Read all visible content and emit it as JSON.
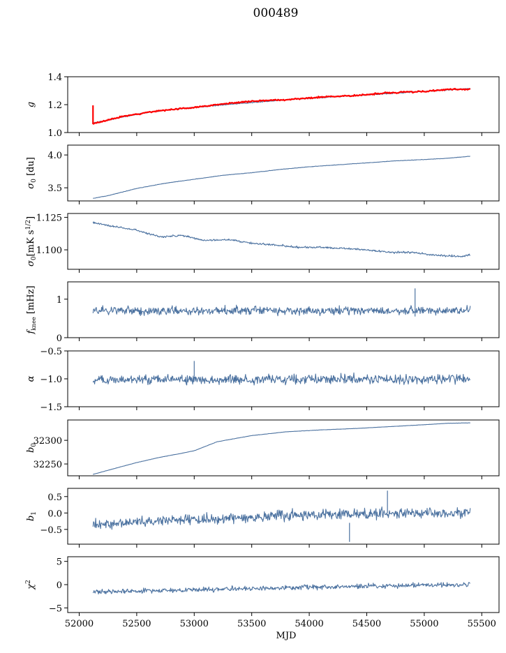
{
  "figure": {
    "title": "000489",
    "x_tick_labels": [
      "52000",
      "52500",
      "53000",
      "53500",
      "54000",
      "54500",
      "55000",
      "55500"
    ],
    "colors": {
      "series": "#4c72a0",
      "fit": "#ff0000",
      "axis": "#000000"
    }
  },
  "chart_data": [
    {
      "type": "line",
      "title": "000489",
      "ylabel": "g",
      "xlabel": "",
      "xlim": [
        51900,
        55650
      ],
      "ylim": [
        1.0,
        1.4
      ],
      "yticks": [
        "1.0",
        "1.2",
        "1.4"
      ],
      "show_x_tick_labels": false,
      "series": [
        {
          "name": "g",
          "style": "line",
          "noise": 0.004,
          "x": [
            52120,
            52200,
            52400,
            52600,
            52800,
            53000,
            53200,
            53500,
            53800,
            54100,
            54400,
            54700,
            55000,
            55200,
            55400
          ],
          "y": [
            1.07,
            1.08,
            1.115,
            1.145,
            1.165,
            1.18,
            1.195,
            1.215,
            1.235,
            1.25,
            1.265,
            1.28,
            1.295,
            1.305,
            1.315
          ]
        },
        {
          "name": "fit",
          "style": "fit",
          "noise": 0.006,
          "x": [
            52120,
            52200,
            52400,
            52600,
            52800,
            53000,
            53200,
            53500,
            53800,
            54100,
            54400,
            54700,
            55000,
            55200,
            55400
          ],
          "y": [
            1.065,
            1.08,
            1.12,
            1.145,
            1.165,
            1.18,
            1.2,
            1.225,
            1.235,
            1.255,
            1.265,
            1.285,
            1.295,
            1.31,
            1.31
          ],
          "spikes": [
            {
              "x": 52120,
              "y0": 1.06,
              "y1": 1.195
            }
          ]
        }
      ]
    },
    {
      "type": "line",
      "ylabel": "σ0 [du]",
      "xlabel": "",
      "xlim": [
        51900,
        55650
      ],
      "ylim": [
        3.3,
        4.15
      ],
      "yticks": [
        "3.5",
        "4.0"
      ],
      "show_x_tick_labels": false,
      "series": [
        {
          "name": "sigma0_du",
          "style": "line",
          "noise": 0.003,
          "x": [
            52120,
            52250,
            52500,
            52750,
            53000,
            53250,
            53500,
            53750,
            54000,
            54250,
            54500,
            54750,
            55000,
            55200,
            55400
          ],
          "y": [
            3.34,
            3.38,
            3.49,
            3.57,
            3.63,
            3.69,
            3.73,
            3.78,
            3.82,
            3.85,
            3.88,
            3.91,
            3.93,
            3.95,
            3.98
          ]
        }
      ]
    },
    {
      "type": "line",
      "ylabel": "σ0[mK s^1/2]",
      "xlabel": "",
      "xlim": [
        51900,
        55650
      ],
      "ylim": [
        1.085,
        1.128
      ],
      "yticks": [
        "1.100",
        "1.125"
      ],
      "show_x_tick_labels": false,
      "series": [
        {
          "name": "sigma0_mK",
          "style": "line",
          "noise": 0.0008,
          "x": [
            52120,
            52300,
            52500,
            52700,
            52900,
            53100,
            53300,
            53500,
            53700,
            53900,
            54100,
            54300,
            54500,
            54700,
            54900,
            55100,
            55300,
            55400
          ],
          "y": [
            1.121,
            1.118,
            1.115,
            1.11,
            1.111,
            1.107,
            1.108,
            1.105,
            1.104,
            1.102,
            1.102,
            1.101,
            1.1,
            1.098,
            1.098,
            1.096,
            1.095,
            1.096
          ]
        }
      ]
    },
    {
      "type": "line",
      "ylabel": "f_knee [mHz]",
      "xlabel": "",
      "xlim": [
        51900,
        55650
      ],
      "ylim": [
        0,
        1.45
      ],
      "yticks": [
        "0",
        "1"
      ],
      "show_x_tick_labels": false,
      "series": [
        {
          "name": "fknee",
          "style": "line",
          "noise": 0.12,
          "x": [
            52120,
            55400
          ],
          "y": [
            0.7,
            0.7
          ],
          "spikes": [
            {
              "x": 54920,
              "y0": 0.55,
              "y1": 1.28
            }
          ]
        }
      ]
    },
    {
      "type": "line",
      "ylabel": "α",
      "xlabel": "",
      "xlim": [
        51900,
        55650
      ],
      "ylim": [
        -1.5,
        -0.5
      ],
      "yticks": [
        "−1.5",
        "−1.0",
        "−0.5"
      ],
      "show_x_tick_labels": false,
      "series": [
        {
          "name": "alpha",
          "style": "line",
          "noise": 0.09,
          "x": [
            52120,
            55400
          ],
          "y": [
            -1.02,
            -1.0
          ],
          "spikes": [
            {
              "x": 53000,
              "y0": -0.95,
              "y1": -0.68
            }
          ]
        }
      ]
    },
    {
      "type": "line",
      "ylabel": "b0",
      "xlabel": "",
      "xlim": [
        51900,
        55650
      ],
      "ylim": [
        32225,
        32343
      ],
      "yticks": [
        "32250",
        "32300"
      ],
      "show_x_tick_labels": false,
      "series": [
        {
          "name": "b0",
          "style": "line",
          "noise": 0.3,
          "x": [
            52120,
            52300,
            52500,
            52700,
            52900,
            53000,
            53200,
            53500,
            53800,
            54100,
            54400,
            54700,
            55000,
            55200,
            55400
          ],
          "y": [
            32228,
            32240,
            32253,
            32264,
            32273,
            32278,
            32297,
            32310,
            32318,
            32322,
            32325,
            32329,
            32333,
            32336,
            32337
          ]
        }
      ]
    },
    {
      "type": "line",
      "ylabel": "b1",
      "xlabel": "",
      "xlim": [
        51900,
        55650
      ],
      "ylim": [
        -0.95,
        0.75
      ],
      "yticks": [
        "−0.5",
        "0.0",
        "0.5"
      ],
      "show_x_tick_labels": false,
      "series": [
        {
          "name": "b1",
          "style": "line",
          "noise": 0.17,
          "x": [
            52120,
            52500,
            53000,
            53500,
            54000,
            54500,
            55000,
            55400
          ],
          "y": [
            -0.35,
            -0.28,
            -0.2,
            -0.12,
            -0.05,
            -0.02,
            0.0,
            0.0
          ],
          "spikes": [
            {
              "x": 54350,
              "y0": -0.3,
              "y1": -0.88
            },
            {
              "x": 54680,
              "y0": 0.0,
              "y1": 0.68
            }
          ]
        }
      ]
    },
    {
      "type": "line",
      "ylabel": "χ²",
      "xlabel": "MJD",
      "xlim": [
        51900,
        55650
      ],
      "ylim": [
        -6,
        6
      ],
      "yticks": [
        "−5",
        "0",
        "5"
      ],
      "show_x_tick_labels": true,
      "series": [
        {
          "name": "chi2",
          "style": "line",
          "noise": 0.55,
          "x": [
            52120,
            53000,
            54000,
            55000,
            55400
          ],
          "y": [
            -1.6,
            -1.1,
            -0.6,
            -0.1,
            0.0
          ]
        }
      ]
    }
  ]
}
